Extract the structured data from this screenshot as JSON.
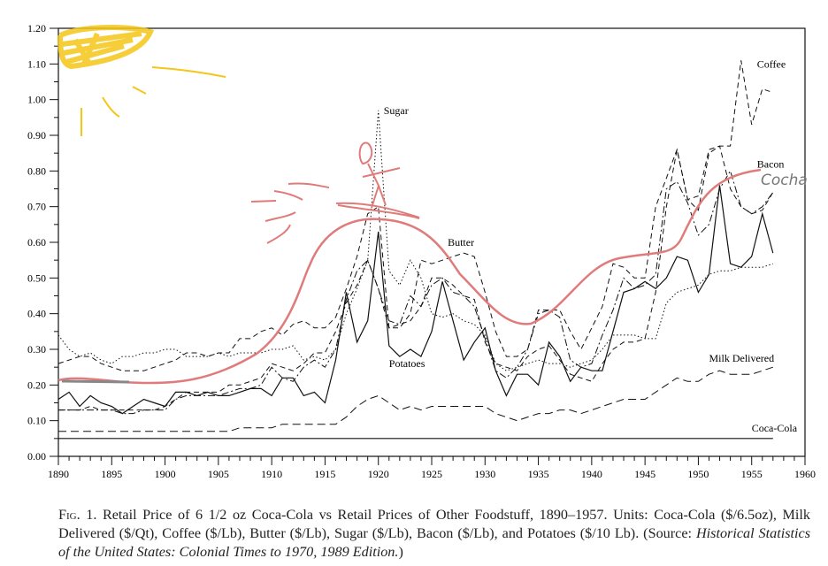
{
  "chart_data": {
    "type": "line",
    "xlim": [
      1890,
      1960
    ],
    "ylim": [
      0,
      1.2
    ],
    "xticks": [
      "1890",
      "1895",
      "1900",
      "1905",
      "1910",
      "1915",
      "1920",
      "1925",
      "1930",
      "1935",
      "1940",
      "1945",
      "1950",
      "1955",
      "1960"
    ],
    "yticks": [
      "0.00",
      "0.10",
      "0.20",
      "0.30",
      "0.40",
      "0.50",
      "0.60",
      "0.70",
      "0.80",
      "0.90",
      "1.00",
      "1.10",
      "1.20"
    ],
    "x_start": 1890,
    "series": [
      {
        "name": "Coca-Cola",
        "style": "solid",
        "label_year": 1955,
        "label_value": 0.07,
        "values": [
          0.05,
          0.05,
          0.05,
          0.05,
          0.05,
          0.05,
          0.05,
          0.05,
          0.05,
          0.05,
          0.05,
          0.05,
          0.05,
          0.05,
          0.05,
          0.05,
          0.05,
          0.05,
          0.05,
          0.05,
          0.05,
          0.05,
          0.05,
          0.05,
          0.05,
          0.05,
          0.05,
          0.05,
          0.05,
          0.05,
          0.05,
          0.05,
          0.05,
          0.05,
          0.05,
          0.05,
          0.05,
          0.05,
          0.05,
          0.05,
          0.05,
          0.05,
          0.05,
          0.05,
          0.05,
          0.05,
          0.05,
          0.05,
          0.05,
          0.05,
          0.05,
          0.05,
          0.05,
          0.05,
          0.05,
          0.05,
          0.05,
          0.05,
          0.05,
          0.05,
          0.05,
          0.05,
          0.05,
          0.05,
          0.05,
          0.05,
          0.05,
          0.05
        ]
      },
      {
        "name": "Milk Delivered",
        "style": "longdash",
        "label_year": 1951,
        "label_value": 0.265,
        "values": [
          0.07,
          0.07,
          0.07,
          0.07,
          0.07,
          0.07,
          0.07,
          0.07,
          0.07,
          0.07,
          0.07,
          0.07,
          0.07,
          0.07,
          0.07,
          0.07,
          0.07,
          0.08,
          0.08,
          0.08,
          0.08,
          0.09,
          0.09,
          0.09,
          0.09,
          0.09,
          0.09,
          0.11,
          0.14,
          0.16,
          0.17,
          0.15,
          0.13,
          0.14,
          0.13,
          0.14,
          0.14,
          0.14,
          0.14,
          0.14,
          0.14,
          0.12,
          0.11,
          0.1,
          0.11,
          0.12,
          0.12,
          0.13,
          0.13,
          0.12,
          0.13,
          0.14,
          0.15,
          0.16,
          0.16,
          0.16,
          0.18,
          0.2,
          0.22,
          0.21,
          0.21,
          0.23,
          0.24,
          0.23,
          0.23,
          0.23,
          0.24,
          0.25
        ]
      },
      {
        "name": "Potatoes",
        "style": "solid",
        "label_year": 1921,
        "label_value": 0.25,
        "values": [
          0.16,
          0.18,
          0.14,
          0.17,
          0.15,
          0.14,
          0.12,
          0.14,
          0.16,
          0.15,
          0.14,
          0.18,
          0.18,
          0.17,
          0.18,
          0.17,
          0.17,
          0.18,
          0.19,
          0.19,
          0.17,
          0.22,
          0.22,
          0.17,
          0.18,
          0.15,
          0.27,
          0.46,
          0.32,
          0.38,
          0.63,
          0.31,
          0.28,
          0.3,
          0.28,
          0.35,
          0.49,
          0.38,
          0.27,
          0.32,
          0.36,
          0.24,
          0.17,
          0.23,
          0.23,
          0.2,
          0.32,
          0.28,
          0.21,
          0.25,
          0.24,
          0.24,
          0.35,
          0.46,
          0.47,
          0.49,
          0.47,
          0.5,
          0.56,
          0.55,
          0.46,
          0.51,
          0.76,
          0.54,
          0.53,
          0.56,
          0.68,
          0.57
        ]
      },
      {
        "name": "Sugar",
        "style": "dotted",
        "label_year": 1920.5,
        "label_value": 0.96,
        "values": [
          0.34,
          0.3,
          0.28,
          0.29,
          0.27,
          0.26,
          0.28,
          0.28,
          0.29,
          0.29,
          0.3,
          0.3,
          0.28,
          0.28,
          0.28,
          0.29,
          0.28,
          0.29,
          0.29,
          0.29,
          0.3,
          0.3,
          0.31,
          0.27,
          0.28,
          0.27,
          0.3,
          0.4,
          0.47,
          0.55,
          0.97,
          0.52,
          0.48,
          0.55,
          0.5,
          0.4,
          0.39,
          0.4,
          0.38,
          0.37,
          0.34,
          0.26,
          0.24,
          0.25,
          0.26,
          0.27,
          0.26,
          0.26,
          0.25,
          0.26,
          0.27,
          0.3,
          0.34,
          0.34,
          0.34,
          0.33,
          0.33,
          0.43,
          0.46,
          0.47,
          0.48,
          0.51,
          0.52,
          0.52,
          0.53,
          0.53,
          0.53,
          0.54
        ]
      },
      {
        "name": "Butter",
        "style": "dash",
        "label_year": 1926.5,
        "label_value": 0.59,
        "values": [
          0.26,
          0.27,
          0.28,
          0.28,
          0.26,
          0.25,
          0.24,
          0.24,
          0.24,
          0.25,
          0.26,
          0.27,
          0.29,
          0.29,
          0.28,
          0.29,
          0.29,
          0.33,
          0.33,
          0.35,
          0.36,
          0.34,
          0.37,
          0.38,
          0.36,
          0.36,
          0.39,
          0.47,
          0.56,
          0.68,
          0.7,
          0.36,
          0.36,
          0.4,
          0.55,
          0.54,
          0.55,
          0.56,
          0.57,
          0.56,
          0.46,
          0.35,
          0.28,
          0.28,
          0.3,
          0.41,
          0.41,
          0.41,
          0.35,
          0.3,
          0.36,
          0.42,
          0.54,
          0.53,
          0.5,
          0.5,
          0.7,
          0.78,
          0.86,
          0.72,
          0.73,
          0.86,
          0.87,
          0.75,
          0.7,
          0.68,
          0.69,
          0.74
        ]
      },
      {
        "name": "Coffee",
        "style": "dash",
        "label_year": 1955.5,
        "label_value": 1.09,
        "values": [
          0.13,
          0.13,
          0.13,
          0.14,
          0.13,
          0.13,
          0.13,
          0.13,
          0.13,
          0.13,
          0.14,
          0.16,
          0.18,
          0.18,
          0.18,
          0.18,
          0.2,
          0.2,
          0.21,
          0.22,
          0.26,
          0.25,
          0.24,
          0.26,
          0.29,
          0.29,
          0.35,
          0.43,
          0.48,
          0.55,
          0.47,
          0.36,
          0.37,
          0.38,
          0.42,
          0.5,
          0.5,
          0.48,
          0.45,
          0.44,
          0.32,
          0.26,
          0.25,
          0.24,
          0.28,
          0.3,
          0.31,
          0.27,
          0.23,
          0.22,
          0.21,
          0.26,
          0.3,
          0.32,
          0.32,
          0.33,
          0.46,
          0.7,
          0.86,
          0.72,
          0.69,
          0.85,
          0.87,
          0.87,
          1.11,
          0.93,
          1.03,
          1.02
        ]
      },
      {
        "name": "Bacon",
        "style": "dashdot",
        "label_year": 1955.5,
        "label_value": 0.81,
        "values": [
          0.13,
          0.13,
          0.13,
          0.13,
          0.13,
          0.13,
          0.12,
          0.12,
          0.13,
          0.13,
          0.13,
          0.16,
          0.17,
          0.17,
          0.17,
          0.17,
          0.18,
          0.19,
          0.19,
          0.2,
          0.25,
          0.22,
          0.21,
          0.25,
          0.27,
          0.25,
          0.3,
          0.44,
          0.52,
          0.55,
          0.47,
          0.38,
          0.37,
          0.45,
          0.42,
          0.48,
          0.5,
          0.46,
          0.45,
          0.42,
          0.33,
          0.24,
          0.22,
          0.25,
          0.3,
          0.4,
          0.41,
          0.39,
          0.27,
          0.25,
          0.26,
          0.34,
          0.41,
          0.5,
          0.47,
          0.48,
          0.51,
          0.75,
          0.77,
          0.71,
          0.62,
          0.65,
          0.75,
          0.8,
          0.7,
          0.68,
          0.7,
          0.74
        ]
      }
    ],
    "annotations": {
      "handwritten_label": "Cocha",
      "drawn_curve_name": "Coca-Cola (hand-drawn)"
    }
  },
  "caption": {
    "fig": "Fig. 1.",
    "text": " Retail Price of 6 1/2 oz Coca-Cola vs Retail Prices of Other Foodstuff, 1890–1957. Units: Coca-Cola ($/6.5oz), Milk Delivered ($/Qt), Coffee ($/Lb), Butter ($/Lb), Sugar ($/Lb), Bacon ($/Lb), and Potatoes ($/10 Lb). (Source: ",
    "source": "Historical Statistics of the United States: Colonial Times to 1970, 1989 Edition.",
    "end": ")"
  },
  "colors": {
    "axis": "#111111",
    "drawing_red": "#e07b7b",
    "sun": "#f5c518"
  }
}
